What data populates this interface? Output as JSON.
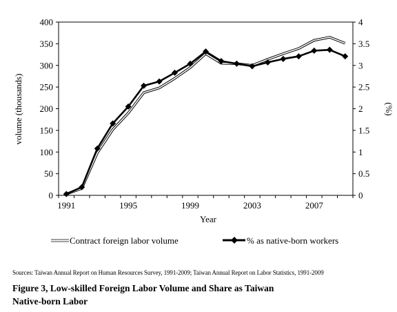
{
  "chart_data": {
    "type": "line",
    "x": [
      1991,
      1992,
      1993,
      1994,
      1995,
      1996,
      1997,
      1998,
      1999,
      2000,
      2001,
      2002,
      2003,
      2004,
      2005,
      2006,
      2007,
      2008,
      2009
    ],
    "x_ticks": [
      "1991",
      "1995",
      "1999",
      "2003",
      "2007"
    ],
    "xlabel": "Year",
    "ylabel_left": "volume (thousands)",
    "ylabel_right": "(%)",
    "ylim_left": [
      0,
      400
    ],
    "ylim_right": [
      0,
      4
    ],
    "yticks_left": [
      "0",
      "50",
      "100",
      "150",
      "200",
      "250",
      "300",
      "350",
      "400"
    ],
    "yticks_right": [
      "0",
      "0.5",
      "1",
      "1.5",
      "2",
      "2.5",
      "3",
      "3.5",
      "4"
    ],
    "series": [
      {
        "name": "Contract foreign labor volume",
        "axis": "left",
        "style": "double-thin",
        "values": [
          3,
          16,
          98,
          152,
          190,
          237,
          248,
          270,
          295,
          327,
          305,
          304,
          300,
          314,
          327,
          339,
          358,
          365,
          351
        ]
      },
      {
        "name": "% as native-born workers",
        "axis": "right",
        "style": "thick-diamond",
        "values": [
          0.03,
          0.19,
          1.08,
          1.66,
          2.05,
          2.53,
          2.63,
          2.83,
          3.04,
          3.32,
          3.1,
          3.04,
          2.98,
          3.07,
          3.15,
          3.21,
          3.34,
          3.36,
          3.21
        ]
      }
    ],
    "grid": false,
    "legend_position": "bottom"
  },
  "source_text": "Sources: Taiwan Annual Report on Human Resources Survey, 1991-2009; Taiwan Annual Report on Labor Statistics, 1991-2009",
  "caption_line1": "Figure 3, Low-skilled Foreign Labor Volume and Share as Taiwan",
  "caption_line2": "Native-born Labor"
}
